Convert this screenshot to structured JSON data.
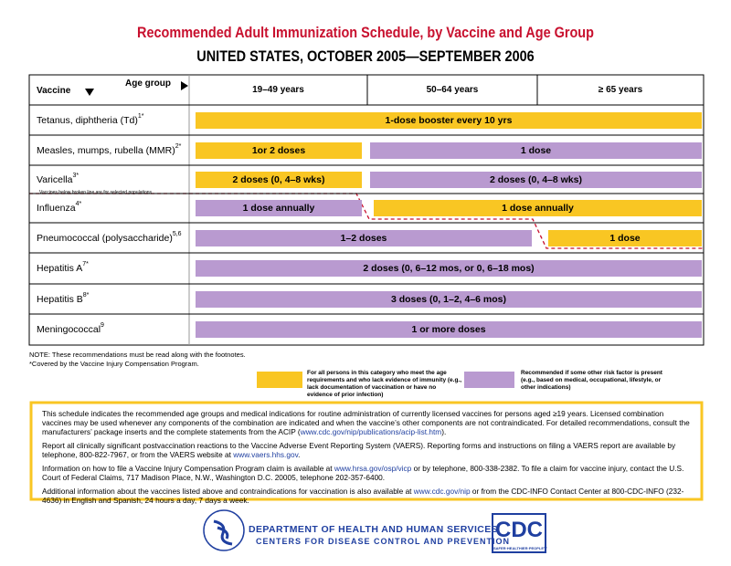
{
  "header": {
    "title": "Recommended Adult Immunization Schedule, by Vaccine and Age Group",
    "subtitle": "UNITED STATES, OCTOBER 2005—SEPTEMBER 2006"
  },
  "table": {
    "corner_vaccine": "Vaccine",
    "corner_age": "Age group",
    "columns": [
      "19–49 years",
      "50–64 years",
      "≥ 65 years"
    ],
    "broken_line_note": "Vaccines below broken line are for selected populations",
    "rows": [
      {
        "name": "Tetanus, diphtheria (Td)",
        "sup": "1*",
        "bars": [
          {
            "text": "1-dose booster every 10 yrs",
            "color": "#f9c623"
          }
        ]
      },
      {
        "name": "Measles, mumps, rubella (MMR)",
        "sup": "2*",
        "bars": [
          {
            "text": "1or 2 doses",
            "color": "#f9c623"
          },
          {
            "text": "1 dose",
            "color": "#b99ad0"
          }
        ]
      },
      {
        "name": "Varicella",
        "sup": "3*",
        "bars": [
          {
            "text": "2 doses (0, 4–8 wks)",
            "color": "#f9c623"
          },
          {
            "text": "2 doses (0, 4–8 wks)",
            "color": "#b99ad0"
          }
        ]
      },
      {
        "name": "Influenza",
        "sup": "4*",
        "bars": [
          {
            "text": "1 dose annually",
            "color": "#b99ad0"
          },
          {
            "text": "1 dose annually",
            "color": "#f9c623"
          }
        ]
      },
      {
        "name": "Pneumococcal (polysaccharide)",
        "sup": "5,6",
        "bars": [
          {
            "text": "1–2 doses",
            "color": "#b99ad0"
          },
          {
            "text": "1 dose",
            "color": "#f9c623"
          }
        ]
      },
      {
        "name": "Hepatitis A",
        "sup": "7*",
        "bars": [
          {
            "text": "2 doses (0, 6–12 mos, or 0, 6–18 mos)",
            "color": "#b99ad0"
          }
        ]
      },
      {
        "name": "Hepatitis B",
        "sup": "8*",
        "bars": [
          {
            "text": "3 doses (0, 1–2, 4–6 mos)",
            "color": "#b99ad0"
          }
        ]
      },
      {
        "name": "Meningococcal",
        "sup": "9",
        "bars": [
          {
            "text": "1 or more doses",
            "color": "#b99ad0"
          }
        ]
      }
    ]
  },
  "notes": [
    "NOTE: These recommendations must be read along with the footnotes.",
    "*Covered by the Vaccine Injury Compensation Program."
  ],
  "legend": [
    {
      "color": "#f9c623",
      "text": "For all persons in this category who meet the age requirements and who lack evidence of immunity (e.g., lack documentation of vaccination or have no evidence of prior infection)"
    },
    {
      "color": "#b99ad0",
      "text": "Recommended if some other risk factor is present (e.g., based on medical, occupational, lifestyle, or other indications)"
    }
  ],
  "info": [
    [
      "This schedule indicates the recommended age groups and medical indications for routine administration of currently licensed vaccines for persons aged ≥19 years. Licensed combination vaccines may be used whenever any components of the combination are indicated and when the vaccine’s other components are not contraindicated. For detailed recommendations, consult the manufacturers’ package inserts and the complete statements from the ACIP (",
      {
        "text": "www.cdc.gov/nip/publications/acip-list.htm",
        "link": true
      },
      ")."
    ],
    [
      "Report all clinically significant postvaccination reactions to the Vaccine Adverse Event Reporting System (VAERS). Reporting forms and instructions on filing a VAERS report are available by telephone, 800-822-7967, or from the VAERS website at ",
      {
        "text": "www.vaers.hhs.gov",
        "link": true
      },
      "."
    ],
    [
      "Information on how to file a Vaccine Injury Compensation Program claim is available at ",
      {
        "text": "www.hrsa.gov/osp/vicp",
        "link": true
      },
      " or by telephone, 800-338-2382. To file a claim for vaccine injury, contact the U.S. Court of Federal Claims, 717 Madison Place, N.W., Washington D.C. 20005, telephone 202-357-6400."
    ],
    [
      "Additional information about the vaccines listed above and contraindications for vaccination is also available at ",
      {
        "text": "www.cdc.gov/nip",
        "link": true
      },
      " or from the CDC-INFO Contact Center at 800-CDC-INFO (232-4636) in English and Spanish, 24 hours a day, 7 days a week."
    ]
  ],
  "footer": {
    "dept": "DEPARTMENT OF HEALTH AND HUMAN SERVICES",
    "center": "CENTERS FOR DISEASE CONTROL AND PREVENTION",
    "logo": "CDC",
    "tagline": "SAFER·HEALTHIER·PEOPLE™"
  }
}
